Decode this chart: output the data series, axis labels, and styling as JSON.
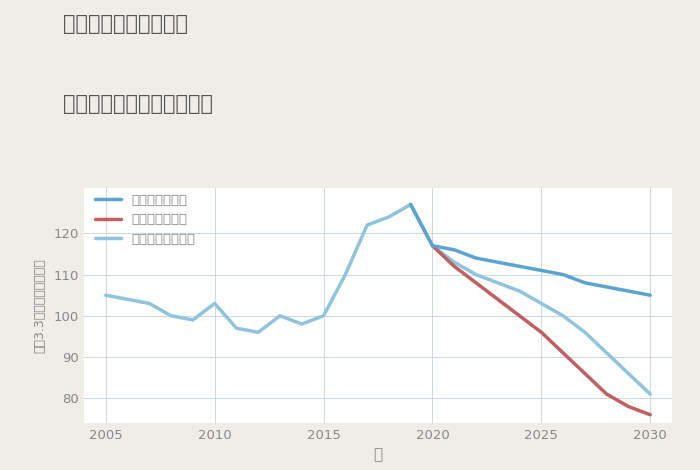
{
  "title_line1": "愛知県稲沢市東緑町の",
  "title_line2": "中古マンションの価格推移",
  "xlabel": "年",
  "ylabel": "平（3.3㎡）単価（万円）",
  "background_color": "#eeede8",
  "plot_background_color": "#ffffff",
  "legend_labels": [
    "グッドシナリオ",
    "バッドシナリオ",
    "ノーマルシナリオ"
  ],
  "good_color": "#5ba3d0",
  "bad_color": "#c06060",
  "normal_color": "#90c4de",
  "normal_x": [
    2005,
    2006,
    2007,
    2008,
    2009,
    2010,
    2011,
    2012,
    2013,
    2014,
    2015,
    2016,
    2017,
    2018,
    2019,
    2020,
    2021,
    2022,
    2023,
    2024,
    2025,
    2026,
    2027,
    2028,
    2029,
    2030
  ],
  "normal_y": [
    105,
    104,
    103,
    100,
    99,
    103,
    97,
    96,
    100,
    98,
    100,
    110,
    122,
    124,
    127,
    117,
    113,
    110,
    108,
    106,
    103,
    100,
    96,
    91,
    86,
    81
  ],
  "good_x": [
    2019,
    2020,
    2021,
    2022,
    2023,
    2024,
    2025,
    2026,
    2027,
    2028,
    2029,
    2030
  ],
  "good_y": [
    127,
    117,
    116,
    114,
    113,
    112,
    111,
    110,
    108,
    107,
    106,
    105
  ],
  "bad_x": [
    2020,
    2021,
    2022,
    2023,
    2024,
    2025,
    2026,
    2027,
    2028,
    2029,
    2030
  ],
  "bad_y": [
    117,
    112,
    108,
    104,
    100,
    96,
    91,
    86,
    81,
    78,
    76
  ],
  "ylim": [
    74,
    131
  ],
  "yticks": [
    80,
    90,
    100,
    110,
    120
  ],
  "xlim": [
    2004,
    2031
  ],
  "xticks": [
    2005,
    2010,
    2015,
    2020,
    2025,
    2030
  ],
  "grid_color": "#ccd8e8",
  "title_color": "#555555",
  "tick_color": "#888888",
  "line_width": 2.5
}
